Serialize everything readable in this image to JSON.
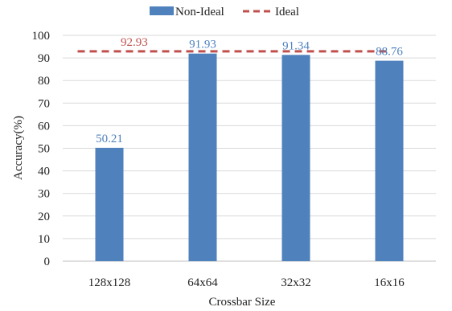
{
  "chart_data": {
    "type": "bar",
    "categories": [
      "128x128",
      "64x64",
      "32x32",
      "16x16"
    ],
    "series": [
      {
        "name": "Non-Ideal",
        "kind": "bar",
        "values": [
          50.21,
          91.93,
          91.34,
          88.76
        ],
        "labels": [
          "50.21",
          "91.93",
          "91.34",
          "88.76"
        ]
      },
      {
        "name": "Ideal",
        "kind": "dashed-line",
        "value": 92.93,
        "label": "92.93"
      }
    ],
    "xlabel": "Crossbar Size",
    "ylabel": "Accuracy(%)",
    "ylim": [
      0,
      100
    ],
    "yticks": [
      "0",
      "10",
      "20",
      "30",
      "40",
      "50",
      "60",
      "70",
      "80",
      "90",
      "100"
    ],
    "grid": true,
    "legend_position": "top-center",
    "colors": {
      "bar": "#4f81bd",
      "ideal": "#c0504d",
      "bar_label": "#4f81bd",
      "ideal_label": "#c0504d"
    }
  }
}
